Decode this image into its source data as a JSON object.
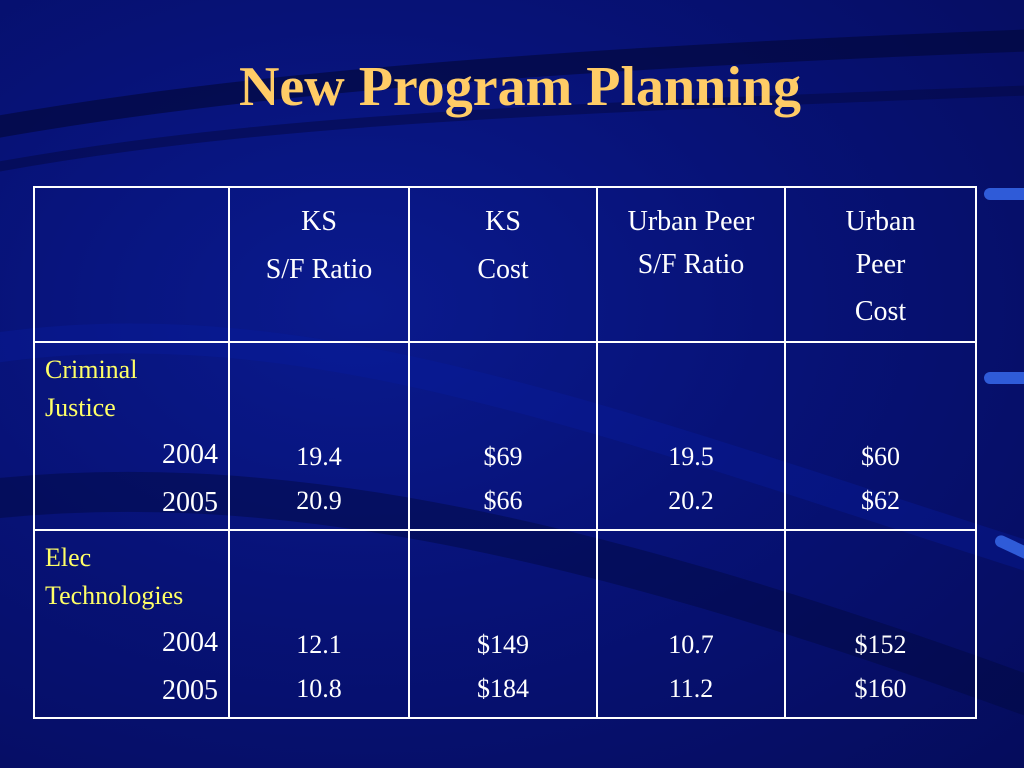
{
  "slide": {
    "title": "New Program Planning"
  },
  "table": {
    "headers": [
      {
        "line1": "KS",
        "line2": "S/F Ratio"
      },
      {
        "line1": "KS",
        "line2": "Cost"
      },
      {
        "line1": "Urban Peer S/F Ratio",
        "line2": ""
      },
      {
        "line1": "Urban Peer",
        "line2": "Cost"
      }
    ],
    "rows": [
      {
        "program": "Criminal Justice",
        "years": [
          "2004",
          "2005"
        ],
        "ks_sf_ratio": [
          "19.4",
          "20.9"
        ],
        "ks_cost": [
          "$69",
          "$66"
        ],
        "urban_peer_sf_ratio": [
          "19.5",
          "20.2"
        ],
        "urban_peer_cost": [
          "$60",
          "$62"
        ]
      },
      {
        "program": "Elec Technologies",
        "years": [
          "2004",
          "2005"
        ],
        "ks_sf_ratio": [
          "12.1",
          "10.8"
        ],
        "ks_cost": [
          "$149",
          "$184"
        ],
        "urban_peer_sf_ratio": [
          "10.7",
          "11.2"
        ],
        "urban_peer_cost": [
          "$152",
          "$160"
        ]
      }
    ]
  },
  "colors": {
    "background": "#071277",
    "title": "#ffcc66",
    "program_label": "#ffff66",
    "text": "#ffffff",
    "accent_dash": "#2f5bd8"
  }
}
